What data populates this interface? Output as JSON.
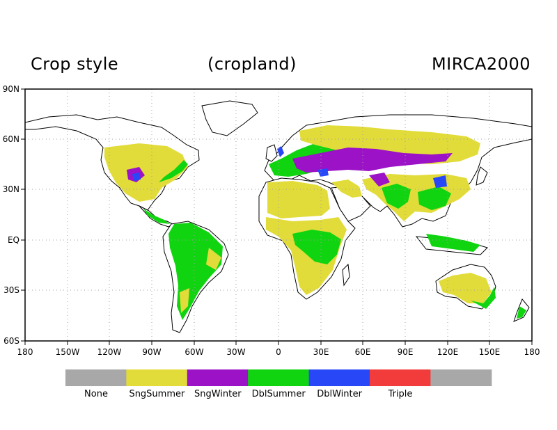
{
  "titles": {
    "left": "Crop style",
    "center": "(cropland)",
    "right": "MIRCA2000"
  },
  "y_ticks": [
    "90N",
    "60N",
    "30N",
    "EQ",
    "30S",
    "60S"
  ],
  "x_ticks": [
    "180",
    "150W",
    "120W",
    "90W",
    "60W",
    "30W",
    "0",
    "30E",
    "60E",
    "90E",
    "120E",
    "150E",
    "180"
  ],
  "legend": [
    {
      "label": "None",
      "color": "#a8a8a8"
    },
    {
      "label": "SngSummer",
      "color": "#e2dc3a"
    },
    {
      "label": "SngWinter",
      "color": "#9b12c7"
    },
    {
      "label": "DblSummer",
      "color": "#11d411"
    },
    {
      "label": "DblWinter",
      "color": "#2848f8"
    },
    {
      "label": "Triple",
      "color": "#f23c3c"
    },
    {
      "label": "",
      "color": "#a8a8a8"
    }
  ],
  "colors": {
    "frame": "#000000",
    "grid": "#a0a0a0",
    "coast": "#000000"
  }
}
